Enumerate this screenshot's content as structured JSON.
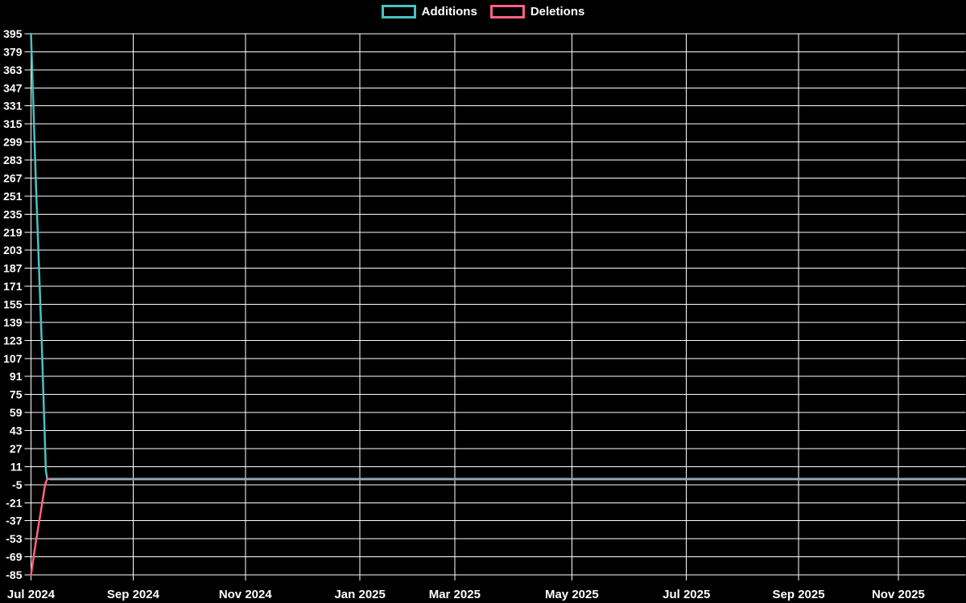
{
  "legend": {
    "items": [
      {
        "label": "Additions",
        "color": "#4bc0c0"
      },
      {
        "label": "Deletions",
        "color": "#ff6384"
      }
    ]
  },
  "chart_data": {
    "type": "line",
    "title": "",
    "xlabel": "",
    "ylabel": "",
    "background": "#000000",
    "grid": {
      "show": true,
      "color": "#ffffff"
    },
    "legend_position": "top-center",
    "x_axis": {
      "unit": "weeks-since-start",
      "range": [
        0,
        75
      ],
      "ticks": [
        {
          "label": "Jul 2024",
          "week": 0
        },
        {
          "label": "Sep 2024",
          "week": 8.2
        },
        {
          "label": "Nov 2024",
          "week": 17.2
        },
        {
          "label": "Jan 2025",
          "week": 26.4
        },
        {
          "label": "Mar 2025",
          "week": 34.0
        },
        {
          "label": "May 2025",
          "week": 43.4
        },
        {
          "label": "Jul 2025",
          "week": 52.6
        },
        {
          "label": "Sep 2025",
          "week": 61.6
        },
        {
          "label": "Nov 2025",
          "week": 69.6
        }
      ]
    },
    "y_axis": {
      "min": -85,
      "max": 395,
      "step": 16,
      "ticks": [
        395,
        379,
        363,
        347,
        331,
        315,
        299,
        283,
        267,
        251,
        235,
        219,
        203,
        187,
        171,
        155,
        139,
        123,
        107,
        91,
        75,
        59,
        43,
        27,
        11,
        -5,
        -21,
        -37,
        -53,
        -69,
        -85
      ]
    },
    "series": [
      {
        "name": "Additions",
        "color": "#4bc0c0",
        "points": [
          [
            0,
            395
          ],
          [
            0.4,
            261
          ],
          [
            0.87,
            118
          ],
          [
            1.19,
            8
          ],
          [
            1.3,
            0
          ],
          [
            75,
            0
          ]
        ]
      },
      {
        "name": "Deletions",
        "color": "#ff6384",
        "points": [
          [
            0,
            -85
          ],
          [
            0.4,
            -55
          ],
          [
            0.74,
            -32
          ],
          [
            1.13,
            -5
          ],
          [
            1.3,
            0
          ],
          [
            75,
            0
          ]
        ]
      }
    ],
    "overlap_line_color": "#8FA8B2"
  }
}
